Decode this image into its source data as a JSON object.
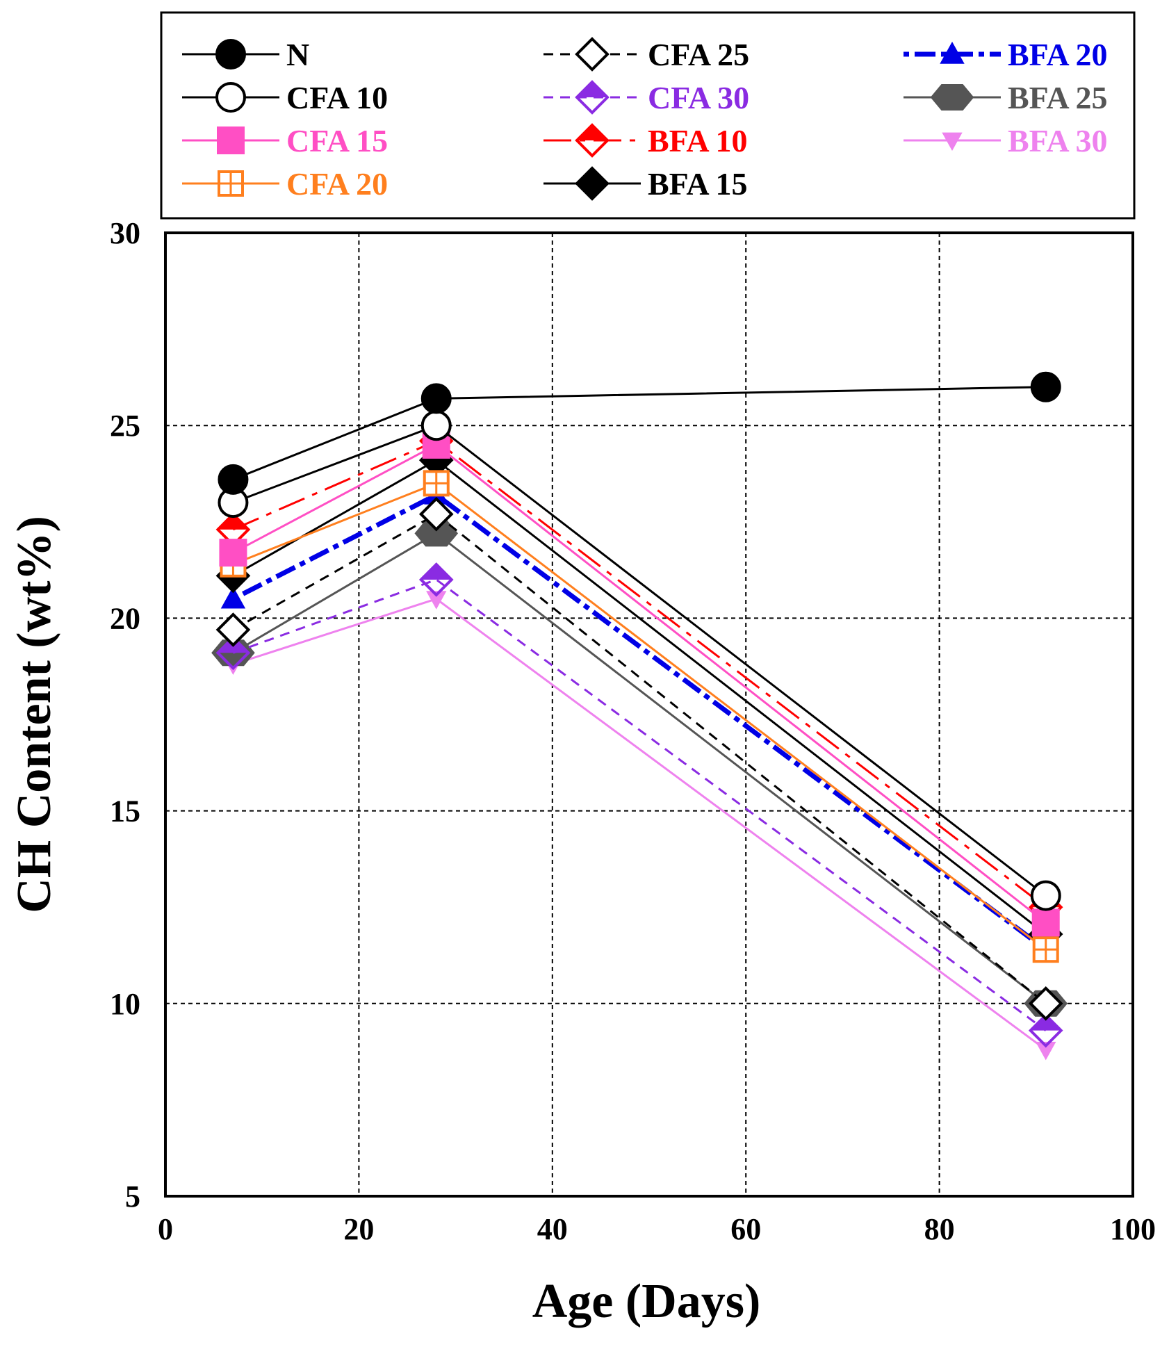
{
  "chart_data": {
    "type": "line",
    "title": "",
    "xlabel": "Age (Days)",
    "ylabel": "CH Content (wt%)",
    "xlim": [
      0,
      100
    ],
    "ylim": [
      5,
      30
    ],
    "xticks": [
      0,
      20,
      40,
      60,
      80,
      100
    ],
    "yticks": [
      5,
      10,
      15,
      20,
      25,
      30
    ],
    "xtick_labels": [
      "0",
      "20",
      "40",
      "60",
      "80",
      "100"
    ],
    "ytick_labels": [
      "5",
      "10",
      "15",
      "20",
      "25",
      "30"
    ],
    "grid": true,
    "legend_position": "top",
    "x": [
      7,
      28,
      91
    ],
    "series": [
      {
        "name": "N",
        "color": "#000000",
        "marker": "circle",
        "fill": "filled",
        "dash": "solid",
        "values": [
          23.6,
          25.7,
          26.0
        ]
      },
      {
        "name": "CFA 10",
        "color": "#000000",
        "marker": "circle",
        "fill": "open",
        "dash": "solid",
        "values": [
          23.0,
          25.0,
          12.8
        ]
      },
      {
        "name": "CFA 15",
        "color": "#ff4fc4",
        "marker": "square",
        "fill": "filled",
        "dash": "solid",
        "values": [
          21.7,
          24.5,
          12.1
        ]
      },
      {
        "name": "CFA 20",
        "color": "#ff7f1e",
        "marker": "square-cross",
        "fill": "open",
        "dash": "solid",
        "values": [
          21.4,
          23.5,
          11.4
        ]
      },
      {
        "name": "CFA 25",
        "color": "#000000",
        "marker": "diamond",
        "fill": "open",
        "dash": "dashed",
        "values": [
          19.7,
          22.7,
          10.0
        ]
      },
      {
        "name": "CFA 30",
        "color": "#8a2be2",
        "marker": "diamond",
        "fill": "half",
        "dash": "dashed",
        "values": [
          19.1,
          21.0,
          9.3
        ]
      },
      {
        "name": "BFA 10",
        "color": "#ff0000",
        "marker": "diamond",
        "fill": "half",
        "dash": "dashdot",
        "values": [
          22.3,
          24.6,
          12.5
        ]
      },
      {
        "name": "BFA 15",
        "color": "#000000",
        "marker": "diamond",
        "fill": "filled",
        "dash": "solid",
        "values": [
          21.1,
          24.1,
          11.8
        ]
      },
      {
        "name": "BFA 20",
        "color": "#0000e6",
        "marker": "triangle",
        "fill": "filled",
        "dash": "dashdotbold",
        "values": [
          20.5,
          23.2,
          11.4
        ]
      },
      {
        "name": "BFA 25",
        "color": "#555555",
        "marker": "hexagon",
        "fill": "filled",
        "dash": "solid",
        "values": [
          19.1,
          22.2,
          10.0
        ]
      },
      {
        "name": "BFA 30",
        "color": "#ee82ee",
        "marker": "triangle-down",
        "fill": "filled",
        "dash": "solid",
        "values": [
          18.8,
          20.5,
          8.8
        ]
      }
    ]
  }
}
